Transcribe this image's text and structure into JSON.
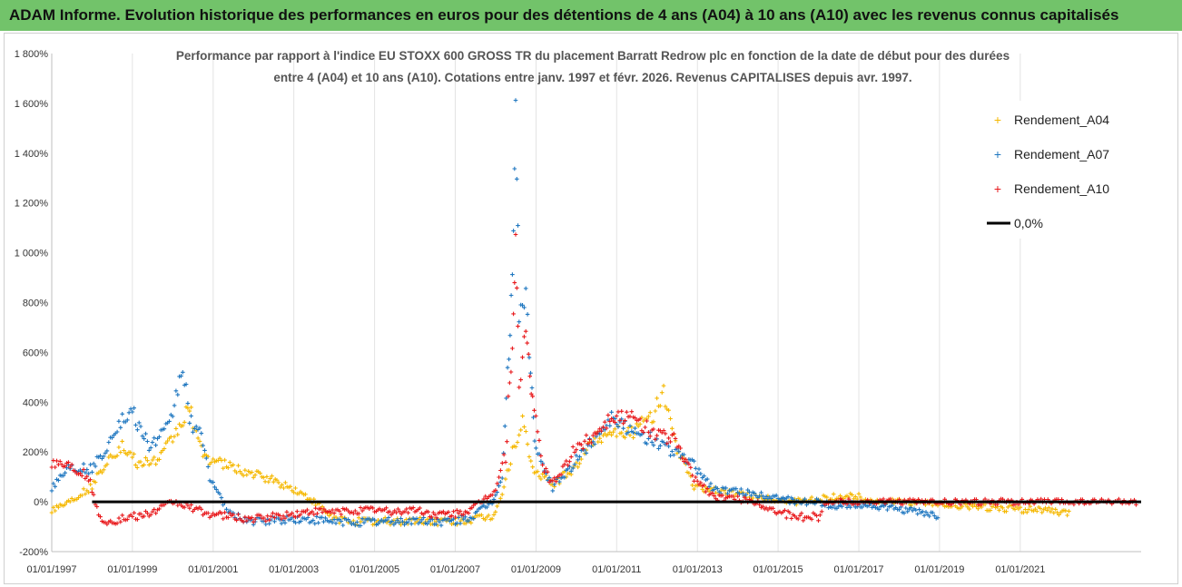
{
  "banner": {
    "text": "ADAM Informe. Evolution historique des performances en euros pour des détentions de 4 ans (A04) à 10 ans (A10) avec les revenus connus capitalisés"
  },
  "colors": {
    "banner_bg": "#72c36a",
    "A04": "#f5b800",
    "A07": "#1f77c0",
    "A10": "#e8191c",
    "zero": "#000000"
  },
  "chart_data": {
    "type": "scatter",
    "title_lines": [
      "Performance par rapport à l'indice EU STOXX 600 GROSS TR  du placement Barratt Redrow plc en fonction de la date de début pour des durées",
      "entre 4 (A04) et 10 ans (A10). Cotations entre janv. 1997 et févr. 2026. Revenus CAPITALISES depuis avr. 1997."
    ],
    "x_range": [
      "1997-01-01",
      "2023-12-31"
    ],
    "ylim": [
      -200,
      1800
    ],
    "y_ticks": [
      -200,
      0,
      200,
      400,
      600,
      800,
      1000,
      1200,
      1400,
      1600,
      1800
    ],
    "y_tick_labels": [
      "-200%",
      "0%",
      "200%",
      "400%",
      "600%",
      "800%",
      "1 000%",
      "1 200%",
      "1 400%",
      "1 600%",
      "1 800%"
    ],
    "x_ticks": [
      "1997-01-01",
      "1999-01-01",
      "2001-01-01",
      "2003-01-01",
      "2005-01-01",
      "2007-01-01",
      "2009-01-01",
      "2011-01-01",
      "2013-01-01",
      "2015-01-01",
      "2017-01-01",
      "2019-01-01",
      "2021-01-01"
    ],
    "x_tick_labels": [
      "01/01/1997",
      "01/01/1999",
      "01/01/2001",
      "01/01/2003",
      "01/01/2005",
      "01/01/2007",
      "01/01/2009",
      "01/01/2011",
      "01/01/2013",
      "01/01/2015",
      "01/01/2017",
      "01/01/2019",
      "01/01/2021"
    ],
    "gridlines": "vertical-only",
    "legend_position": "top-right",
    "legend": [
      "Rendement_A04",
      "Rendement_A07",
      "Rendement_A10",
      "0,0%"
    ],
    "reference_line": {
      "name": "0,0%",
      "y": 0
    },
    "series": [
      {
        "name": "Rendement_A04",
        "points": [
          [
            "1997-01-01",
            -30
          ],
          [
            "1997-06-01",
            0
          ],
          [
            "1998-01-01",
            60
          ],
          [
            "1998-06-01",
            180
          ],
          [
            "1998-10-01",
            220
          ],
          [
            "1999-03-01",
            150
          ],
          [
            "1999-09-01",
            170
          ],
          [
            "2000-03-01",
            300
          ],
          [
            "2000-06-01",
            380
          ],
          [
            "2000-09-01",
            220
          ],
          [
            "2000-12-01",
            170
          ],
          [
            "2001-06-01",
            140
          ],
          [
            "2002-01-01",
            110
          ],
          [
            "2002-06-01",
            90
          ],
          [
            "2003-01-01",
            50
          ],
          [
            "2003-06-01",
            10
          ],
          [
            "2004-01-01",
            -70
          ],
          [
            "2005-01-01",
            -80
          ],
          [
            "2006-01-01",
            -75
          ],
          [
            "2007-01-01",
            -80
          ],
          [
            "2007-12-01",
            -60
          ],
          [
            "2008-03-01",
            30
          ],
          [
            "2008-06-01",
            200
          ],
          [
            "2008-09-01",
            320
          ],
          [
            "2008-12-01",
            130
          ],
          [
            "2009-06-01",
            70
          ],
          [
            "2009-12-01",
            130
          ],
          [
            "2010-06-01",
            250
          ],
          [
            "2010-12-01",
            290
          ],
          [
            "2011-06-01",
            280
          ],
          [
            "2011-12-01",
            350
          ],
          [
            "2012-03-01",
            450
          ],
          [
            "2012-06-01",
            250
          ],
          [
            "2012-12-01",
            60
          ],
          [
            "2013-06-01",
            50
          ],
          [
            "2014-01-01",
            30
          ],
          [
            "2014-06-01",
            20
          ],
          [
            "2015-01-01",
            10
          ],
          [
            "2015-06-01",
            0
          ],
          [
            "2016-01-01",
            10
          ],
          [
            "2016-06-01",
            20
          ],
          [
            "2017-01-01",
            20
          ],
          [
            "2017-06-01",
            0
          ],
          [
            "2018-01-01",
            0
          ],
          [
            "2019-01-01",
            -10
          ],
          [
            "2020-01-01",
            -20
          ],
          [
            "2021-01-01",
            -30
          ],
          [
            "2021-06-01",
            -30
          ],
          [
            "2022-01-01",
            -45
          ],
          [
            "2022-04-01",
            -50
          ]
        ]
      },
      {
        "name": "Rendement_A07",
        "points": [
          [
            "1997-01-01",
            60
          ],
          [
            "1997-06-01",
            140
          ],
          [
            "1998-01-01",
            130
          ],
          [
            "1998-05-01",
            210
          ],
          [
            "1998-08-01",
            300
          ],
          [
            "1999-01-01",
            360
          ],
          [
            "1999-06-01",
            220
          ],
          [
            "1999-12-01",
            300
          ],
          [
            "2000-04-01",
            550
          ],
          [
            "2000-06-01",
            330
          ],
          [
            "2000-10-01",
            250
          ],
          [
            "2000-12-01",
            100
          ],
          [
            "2001-03-01",
            20
          ],
          [
            "2001-06-01",
            -50
          ],
          [
            "2002-01-01",
            -80
          ],
          [
            "2003-01-01",
            -70
          ],
          [
            "2004-01-01",
            -80
          ],
          [
            "2005-01-01",
            -80
          ],
          [
            "2006-01-01",
            -75
          ],
          [
            "2007-01-01",
            -80
          ],
          [
            "2007-06-01",
            -60
          ],
          [
            "2007-12-01",
            0
          ],
          [
            "2008-03-01",
            100
          ],
          [
            "2008-05-01",
            600
          ],
          [
            "2008-06-01",
            900
          ],
          [
            "2008-07-01",
            1660
          ],
          [
            "2008-08-01",
            700
          ],
          [
            "2008-10-01",
            850
          ],
          [
            "2008-11-01",
            600
          ],
          [
            "2009-01-01",
            200
          ],
          [
            "2009-06-01",
            60
          ],
          [
            "2009-12-01",
            150
          ],
          [
            "2010-06-01",
            250
          ],
          [
            "2010-12-01",
            350
          ],
          [
            "2011-06-01",
            270
          ],
          [
            "2011-12-01",
            250
          ],
          [
            "2012-06-01",
            200
          ],
          [
            "2012-12-01",
            150
          ],
          [
            "2013-06-01",
            50
          ],
          [
            "2014-01-01",
            40
          ],
          [
            "2014-06-01",
            30
          ],
          [
            "2015-01-01",
            20
          ],
          [
            "2015-06-01",
            0
          ],
          [
            "2016-01-01",
            0
          ],
          [
            "2016-06-01",
            -20
          ],
          [
            "2017-01-01",
            -10
          ],
          [
            "2017-06-01",
            -20
          ],
          [
            "2018-01-01",
            -30
          ],
          [
            "2018-06-01",
            -40
          ],
          [
            "2019-01-01",
            -60
          ]
        ]
      },
      {
        "name": "Rendement_A10",
        "points": [
          [
            "1997-01-01",
            160
          ],
          [
            "1997-06-01",
            150
          ],
          [
            "1997-12-01",
            100
          ],
          [
            "1998-03-01",
            -60
          ],
          [
            "1998-06-01",
            -80
          ],
          [
            "1999-01-01",
            -60
          ],
          [
            "1999-06-01",
            -50
          ],
          [
            "2000-01-01",
            0
          ],
          [
            "2000-06-01",
            -20
          ],
          [
            "2000-12-01",
            -50
          ],
          [
            "2001-06-01",
            -60
          ],
          [
            "2002-01-01",
            -70
          ],
          [
            "2003-01-01",
            -50
          ],
          [
            "2003-06-01",
            -40
          ],
          [
            "2004-01-01",
            -40
          ],
          [
            "2005-01-01",
            -30
          ],
          [
            "2005-06-01",
            -40
          ],
          [
            "2006-01-01",
            -30
          ],
          [
            "2006-06-01",
            -50
          ],
          [
            "2007-01-01",
            -50
          ],
          [
            "2007-06-01",
            -30
          ],
          [
            "2008-01-01",
            50
          ],
          [
            "2008-04-01",
            200
          ],
          [
            "2008-06-01",
            650
          ],
          [
            "2008-07-01",
            1020
          ],
          [
            "2008-08-01",
            450
          ],
          [
            "2008-10-01",
            700
          ],
          [
            "2008-12-01",
            400
          ],
          [
            "2009-03-01",
            150
          ],
          [
            "2009-06-01",
            70
          ],
          [
            "2009-12-01",
            200
          ],
          [
            "2010-06-01",
            270
          ],
          [
            "2010-12-01",
            350
          ],
          [
            "2011-06-01",
            330
          ],
          [
            "2011-12-01",
            280
          ],
          [
            "2012-06-01",
            250
          ],
          [
            "2012-12-01",
            100
          ],
          [
            "2013-06-01",
            20
          ],
          [
            "2014-01-01",
            10
          ],
          [
            "2014-06-01",
            0
          ],
          [
            "2015-01-01",
            -40
          ],
          [
            "2015-06-01",
            -60
          ],
          [
            "2016-01-01",
            -60
          ],
          [
            "2016-03-01",
            0
          ],
          [
            "2017-01-01",
            0
          ],
          [
            "2018-01-01",
            0
          ],
          [
            "2019-01-01",
            0
          ],
          [
            "2020-01-01",
            0
          ],
          [
            "2021-01-01",
            0
          ],
          [
            "2023-12-01",
            0
          ]
        ]
      }
    ]
  }
}
